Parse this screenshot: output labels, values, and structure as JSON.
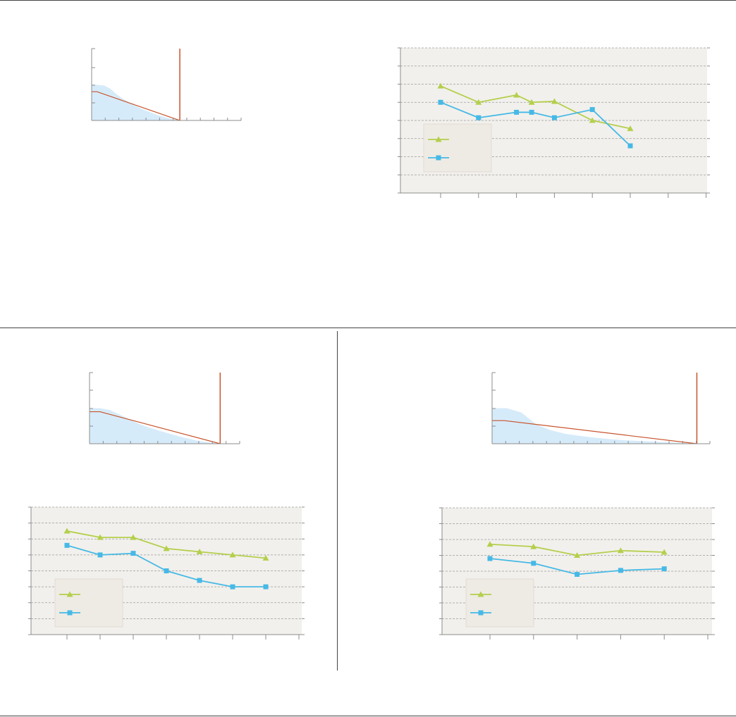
{
  "colors": {
    "series_green": "#b4cf4c",
    "series_blue": "#46b9e6",
    "area_fill": "#d6ebfa",
    "threshold": "#c8552d",
    "axis": "#8c8c8c",
    "grid": "#9c9c9c",
    "panel_bg": "#f2f0ec",
    "legend_bg": "#eeebe4",
    "divider": "#444444"
  },
  "chart_data": [
    {
      "type": "area",
      "panel": "top-left",
      "series": [
        {
          "shape": "density",
          "values": [
            1,
            0.99,
            0.97,
            0.88,
            0.72,
            0.6,
            0.5,
            0.4,
            0.32,
            0.25,
            0.18,
            0.12,
            0.07,
            0.03,
            0
          ]
        },
        {
          "shape": "line",
          "values": [
            0.8,
            0.8,
            0.0
          ]
        }
      ],
      "threshold_fraction": 0.59
    },
    {
      "type": "line",
      "panel": "top-right",
      "grid": true,
      "legend": "left",
      "ylim": [
        0,
        8
      ],
      "series": [
        {
          "marker": "triangle",
          "color_key": "series_green",
          "values": [
            5.9,
            5.0,
            5.4,
            5.0,
            5.05,
            4.0,
            3.55
          ]
        },
        {
          "marker": "square",
          "color_key": "series_blue",
          "values": [
            5.0,
            4.15,
            4.45,
            4.45,
            4.15,
            4.6,
            2.6
          ]
        }
      ],
      "x_positions": [
        1,
        2,
        3,
        3.4,
        4,
        5,
        6
      ]
    },
    {
      "type": "area",
      "panel": "bottom-left",
      "series": [
        {
          "shape": "density",
          "values": [
            1,
            1,
            0.95,
            0.82,
            0.68,
            0.55,
            0.45,
            0.36,
            0.28,
            0.2,
            0.13,
            0.07,
            0.03,
            0
          ]
        },
        {
          "shape": "line",
          "values": [
            0.9,
            0.9,
            0.0
          ]
        }
      ],
      "threshold_fraction": 0.87
    },
    {
      "type": "line",
      "panel": "bottom-left",
      "grid": true,
      "legend": "left",
      "ylim": [
        0,
        8
      ],
      "series": [
        {
          "marker": "triangle",
          "color_key": "series_green",
          "values": [
            6.5,
            6.1,
            6.1,
            5.4,
            5.2,
            5.0,
            4.8
          ]
        },
        {
          "marker": "square",
          "color_key": "series_blue",
          "values": [
            5.6,
            5.0,
            5.1,
            4.0,
            3.4,
            3.0,
            3.0
          ]
        }
      ],
      "x_positions": [
        1,
        2,
        3,
        4,
        5,
        6,
        7
      ]
    },
    {
      "type": "area",
      "panel": "bottom-right",
      "series": [
        {
          "shape": "density",
          "values": [
            1,
            1,
            0.88,
            0.55,
            0.38,
            0.28,
            0.22,
            0.17,
            0.13,
            0.1,
            0.08,
            0.06,
            0.04,
            0.02,
            0
          ]
        },
        {
          "shape": "line",
          "values": [
            0.65,
            0.65,
            0.0
          ]
        }
      ],
      "threshold_fraction": 0.94
    },
    {
      "type": "line",
      "panel": "bottom-right",
      "grid": true,
      "legend": "left",
      "ylim": [
        0,
        8
      ],
      "series": [
        {
          "marker": "triangle",
          "color_key": "series_green",
          "values": [
            5.7,
            5.55,
            5.0,
            5.3,
            5.2
          ]
        },
        {
          "marker": "square",
          "color_key": "series_blue",
          "values": [
            4.8,
            4.5,
            3.8,
            4.05,
            4.15
          ]
        }
      ],
      "x_positions": [
        1,
        2,
        3,
        4,
        5
      ]
    }
  ]
}
